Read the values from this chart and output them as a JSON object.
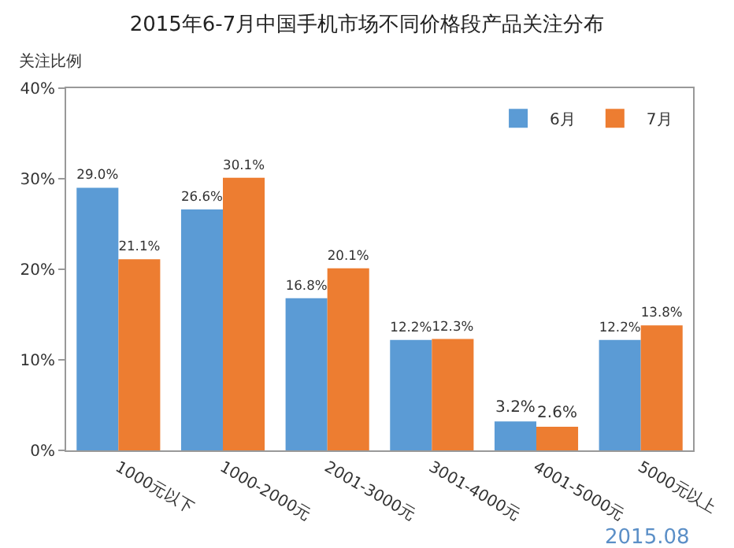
{
  "chart_data": {
    "type": "bar",
    "title": "2015年6-7月中国手机市场不同价格段产品关注分布",
    "ylabel": "关注比例",
    "categories": [
      "1000元以下",
      "1000-2000元",
      "2001-3000元",
      "3001-4000元",
      "4001-5000元",
      "5000元以上"
    ],
    "series": [
      {
        "name": "6月",
        "color": "#5b9bd5",
        "values": [
          29.0,
          26.6,
          16.8,
          12.2,
          3.2,
          12.2
        ],
        "value_labels": [
          "29.0%",
          "26.6%",
          "16.8%",
          "12.2%",
          "3.2%",
          "12.2%"
        ]
      },
      {
        "name": "7月",
        "color": "#ed7d31",
        "values": [
          21.1,
          30.1,
          20.1,
          12.3,
          2.6,
          13.8
        ],
        "value_labels": [
          "21.1%",
          "30.1%",
          "20.1%",
          "12.3%",
          "2.6%",
          "13.8%"
        ]
      }
    ],
    "ylim": [
      0,
      40
    ],
    "yticks": [
      {
        "value": 0,
        "label": "0%"
      },
      {
        "value": 10,
        "label": "10%"
      },
      {
        "value": 20,
        "label": "20%"
      },
      {
        "value": 30,
        "label": "30%"
      },
      {
        "value": 40,
        "label": "40%"
      }
    ],
    "grid": false,
    "legend": "top right",
    "annotations": [
      "2015.08"
    ]
  }
}
